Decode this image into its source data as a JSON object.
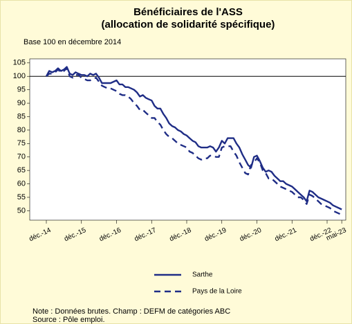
{
  "chart_data": {
    "type": "line",
    "title": [
      "Bénéficiaires de l'ASS",
      "(allocation de solidarité spécifique)"
    ],
    "subtitle": "Base 100 en décembre 2014",
    "categories": [
      "déc.-14",
      null,
      null,
      null,
      null,
      null,
      null,
      null,
      null,
      null,
      null,
      null,
      "déc.-15",
      null,
      null,
      null,
      null,
      null,
      null,
      null,
      null,
      null,
      null,
      null,
      "déc.-16",
      null,
      null,
      null,
      null,
      null,
      null,
      null,
      null,
      null,
      null,
      null,
      "déc.-17",
      null,
      null,
      null,
      null,
      null,
      null,
      null,
      null,
      null,
      null,
      null,
      "déc.-18",
      null,
      null,
      null,
      null,
      null,
      null,
      null,
      null,
      null,
      null,
      null,
      "déc.-19",
      null,
      null,
      null,
      null,
      null,
      null,
      null,
      null,
      null,
      null,
      null,
      "déc.-20",
      null,
      null,
      null,
      null,
      null,
      null,
      null,
      null,
      null,
      null,
      null,
      "déc.-21",
      null,
      null,
      null,
      null,
      null,
      null,
      null,
      null,
      null,
      null,
      null,
      "déc.-22",
      null,
      null,
      null,
      null,
      "mai-23"
    ],
    "series": [
      {
        "name": "Sarthe",
        "color": "#1f2d86",
        "dash": false,
        "values": [
          100,
          102,
          101.5,
          102,
          103,
          102,
          102.5,
          103.5,
          101,
          100.5,
          101.5,
          101,
          100.5,
          100.5,
          100,
          101,
          100.5,
          101,
          99.5,
          97.5,
          97.5,
          97.5,
          97.5,
          98,
          98.5,
          97,
          97,
          96,
          96,
          95.5,
          95,
          94,
          92.5,
          93,
          92,
          91.5,
          91,
          89,
          88,
          88,
          86,
          84.5,
          82.5,
          81.5,
          81,
          80,
          79.5,
          78.5,
          78,
          77,
          76,
          75.5,
          74,
          73.5,
          73.5,
          73.5,
          74,
          73.5,
          72,
          73.5,
          76,
          75,
          77,
          77,
          77,
          75,
          73.5,
          71,
          69,
          67,
          66,
          70,
          70.5,
          68.5,
          66,
          64.5,
          65,
          64.5,
          63,
          62,
          61,
          61,
          60,
          59.5,
          59,
          58,
          57,
          56,
          55,
          53.5,
          57.5,
          57,
          56,
          55,
          54.5,
          54,
          53.5,
          53,
          52,
          51.5,
          51,
          50.5
        ]
      },
      {
        "name": "Pays de la Loire",
        "color": "#1f2d86",
        "dash": true,
        "values": [
          100,
          101,
          101,
          101.5,
          102.5,
          101.5,
          102,
          103,
          100,
          99.5,
          100.5,
          100.5,
          99.5,
          99,
          98.5,
          98.5,
          99,
          99.5,
          98,
          96.5,
          96,
          95.5,
          95.5,
          95,
          94.5,
          93.5,
          93,
          93,
          92.5,
          91.5,
          90,
          89,
          87.5,
          87.5,
          86.5,
          85.5,
          84.5,
          84.5,
          83,
          82,
          80,
          78.5,
          77.5,
          77,
          76,
          75,
          74.5,
          74,
          73.5,
          72,
          71.5,
          70.5,
          69.5,
          69,
          69.5,
          69.5,
          70.5,
          70.5,
          70,
          70,
          73.5,
          74,
          74,
          74,
          72,
          70.5,
          68,
          66,
          64,
          63.5,
          67,
          68,
          69.5,
          68,
          65,
          64,
          62,
          62,
          61,
          60,
          59,
          58.5,
          58,
          57.5,
          57,
          56,
          55,
          55,
          54,
          52.5,
          56,
          55.5,
          54.5,
          53.5,
          52.5,
          52,
          51.5,
          51,
          50,
          49.5,
          49,
          48.5
        ]
      }
    ],
    "ylim": [
      46.5,
      106.5
    ],
    "yticks": [
      50,
      55,
      60,
      65,
      70,
      75,
      80,
      85,
      90,
      95,
      100,
      105
    ],
    "reference_line": 100,
    "grid": false,
    "legend": "bottom",
    "notes": [
      "Note : Données brutes. Champ : DEFM de catégories ABC",
      "Source : Pôle emploi."
    ]
  }
}
